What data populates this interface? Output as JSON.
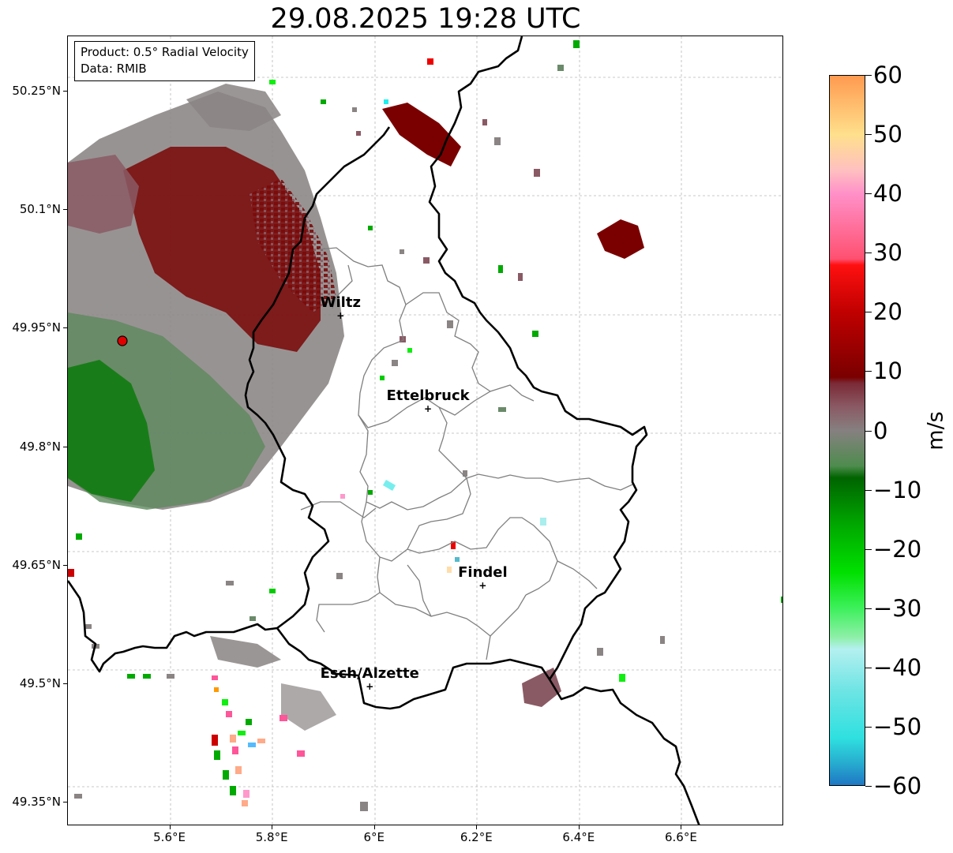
{
  "title": "29.08.2025 19:28 UTC",
  "info_box": {
    "line1": "Product: 0.5° Radial Velocity",
    "line2": "Data: RMIB"
  },
  "map": {
    "lon_range": [
      5.4,
      6.8
    ],
    "lat_range": [
      49.32,
      50.32
    ],
    "radar_site": {
      "lon": 5.506,
      "lat": 49.914,
      "color": "#e00000"
    },
    "cities": [
      {
        "name": "Wiltz",
        "lon": 5.933,
        "lat": 49.966
      },
      {
        "name": "Ettelbruck",
        "lon": 6.104,
        "lat": 49.848
      },
      {
        "name": "Findel",
        "lon": 6.211,
        "lat": 49.625
      },
      {
        "name": "Esch/Alzette",
        "lon": 5.99,
        "lat": 49.497
      }
    ],
    "y_tick_labels": [
      {
        "label": "50.25°N",
        "lat": 50.25
      },
      {
        "label": "50.1°N",
        "lat": 50.1
      },
      {
        "label": "49.95°N",
        "lat": 49.95
      },
      {
        "label": "49.8°N",
        "lat": 49.8
      },
      {
        "label": "49.65°N",
        "lat": 49.65
      },
      {
        "label": "49.5°N",
        "lat": 49.5
      },
      {
        "label": "49.35°N",
        "lat": 49.35
      }
    ],
    "x_tick_labels": [
      {
        "label": "5.6°E",
        "lon": 5.6
      },
      {
        "label": "5.8°E",
        "lon": 5.8
      },
      {
        "label": "6°E",
        "lon": 6.0
      },
      {
        "label": "6.2°E",
        "lon": 6.2
      },
      {
        "label": "6.4°E",
        "lon": 6.4
      },
      {
        "label": "6.6°E",
        "lon": 6.6
      }
    ],
    "grid": true,
    "colors": {
      "border": "#000000",
      "canton": "#7f7f7f",
      "grid": "#b0b0b0"
    }
  },
  "colorbar": {
    "unit": "m/s",
    "range": [
      -60,
      60
    ],
    "ticks": [
      "60",
      "50",
      "40",
      "30",
      "20",
      "10",
      "0",
      "−10",
      "−20",
      "−30",
      "−40",
      "−50",
      "−60"
    ],
    "tick_values": [
      60,
      50,
      40,
      30,
      20,
      10,
      0,
      -10,
      -20,
      -30,
      -40,
      -50,
      -60
    ],
    "stops": [
      {
        "v": -60,
        "c": "#1f77c4"
      },
      {
        "v": -56,
        "c": "#27b0d0"
      },
      {
        "v": -52,
        "c": "#2fe0e0"
      },
      {
        "v": -44,
        "c": "#6ee4e4"
      },
      {
        "v": -37,
        "c": "#b4f0f0"
      },
      {
        "v": -35,
        "c": "#8ef0a8"
      },
      {
        "v": -30,
        "c": "#3cf05a"
      },
      {
        "v": -24,
        "c": "#00e000"
      },
      {
        "v": -16,
        "c": "#00a800"
      },
      {
        "v": -8,
        "c": "#006400"
      },
      {
        "v": -6,
        "c": "#4e8c4e"
      },
      {
        "v": 0,
        "c": "#868080"
      },
      {
        "v": 4,
        "c": "#8a5a64"
      },
      {
        "v": 8,
        "c": "#7a2a36"
      },
      {
        "v": 9,
        "c": "#7a0000"
      },
      {
        "v": 20,
        "c": "#c00000"
      },
      {
        "v": 28,
        "c": "#ff1010"
      },
      {
        "v": 29,
        "c": "#ff5070"
      },
      {
        "v": 40,
        "c": "#ff90c8"
      },
      {
        "v": 44,
        "c": "#ffc0c0"
      },
      {
        "v": 50,
        "c": "#ffe08c"
      },
      {
        "v": 60,
        "c": "#ff9a50"
      }
    ]
  }
}
